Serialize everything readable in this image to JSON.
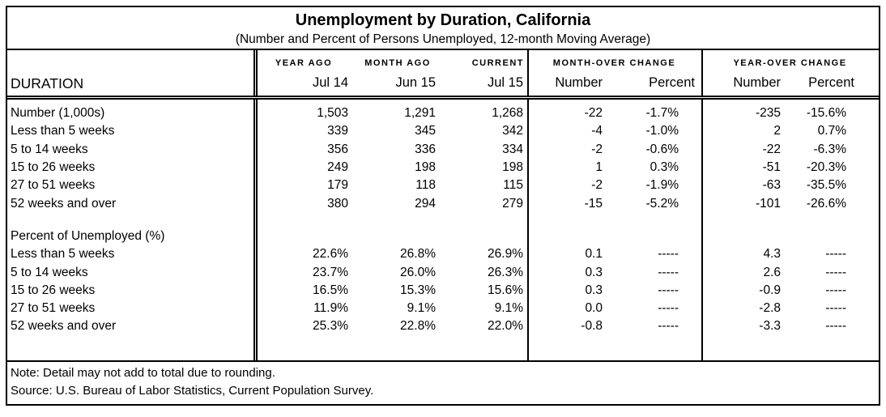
{
  "colors": {
    "border": "#000000",
    "background": "#ffffff",
    "text": "#000000"
  },
  "table": {
    "title": "Unemployment by Duration, California",
    "subtitle": "(Number and Percent of Persons Unemployed, 12-month Moving Average)",
    "duration_header": "DURATION",
    "col_groups": {
      "year_ago": "YEAR AGO",
      "month_ago": "MONTH AGO",
      "current": "CURRENT",
      "month_over": "MONTH-OVER CHANGE",
      "year_over": "YEAR-OVER CHANGE"
    },
    "sub_headers": {
      "year_ago": "Jul 14",
      "month_ago": "Jun 15",
      "current": "Jul 15",
      "mom_number": "Number",
      "mom_percent": "Percent",
      "yoy_number": "Number",
      "yoy_percent": "Percent"
    },
    "number_rows": [
      {
        "label": "Number (1,000s)",
        "year_ago": "1,503",
        "month_ago": "1,291",
        "current": "1,268",
        "mom_number": "-22",
        "mom_percent": "-1.7%",
        "yoy_number": "-235",
        "yoy_percent": "-15.6%"
      },
      {
        "label": "Less than 5 weeks",
        "year_ago": "339",
        "month_ago": "345",
        "current": "342",
        "mom_number": "-4",
        "mom_percent": "-1.0%",
        "yoy_number": "2",
        "yoy_percent": "0.7%"
      },
      {
        "label": "5 to 14 weeks",
        "year_ago": "356",
        "month_ago": "336",
        "current": "334",
        "mom_number": "-2",
        "mom_percent": "-0.6%",
        "yoy_number": "-22",
        "yoy_percent": "-6.3%"
      },
      {
        "label": "15 to 26 weeks",
        "year_ago": "249",
        "month_ago": "198",
        "current": "198",
        "mom_number": "1",
        "mom_percent": "0.3%",
        "yoy_number": "-51",
        "yoy_percent": "-20.3%"
      },
      {
        "label": "27 to 51 weeks",
        "year_ago": "179",
        "month_ago": "118",
        "current": "115",
        "mom_number": "-2",
        "mom_percent": "-1.9%",
        "yoy_number": "-63",
        "yoy_percent": "-35.5%"
      },
      {
        "label": "52 weeks and over",
        "year_ago": "380",
        "month_ago": "294",
        "current": "279",
        "mom_number": "-15",
        "mom_percent": "-5.2%",
        "yoy_number": "-101",
        "yoy_percent": "-26.6%"
      }
    ],
    "percent_section_label": "Percent of Unemployed (%)",
    "percent_rows": [
      {
        "label": "Less than 5 weeks",
        "year_ago": "22.6%",
        "month_ago": "26.8%",
        "current": "26.9%",
        "mom_number": "0.1",
        "mom_percent": "-----",
        "yoy_number": "4.3",
        "yoy_percent": "-----"
      },
      {
        "label": "5 to 14 weeks",
        "year_ago": "23.7%",
        "month_ago": "26.0%",
        "current": "26.3%",
        "mom_number": "0.3",
        "mom_percent": "-----",
        "yoy_number": "2.6",
        "yoy_percent": "-----"
      },
      {
        "label": "15 to 26 weeks",
        "year_ago": "16.5%",
        "month_ago": "15.3%",
        "current": "15.6%",
        "mom_number": "0.3",
        "mom_percent": "-----",
        "yoy_number": "-0.9",
        "yoy_percent": "-----"
      },
      {
        "label": "27 to 51 weeks",
        "year_ago": "11.9%",
        "month_ago": "9.1%",
        "current": "9.1%",
        "mom_number": "0.0",
        "mom_percent": "-----",
        "yoy_number": "-2.8",
        "yoy_percent": "-----"
      },
      {
        "label": "52 weeks and over",
        "year_ago": "25.3%",
        "month_ago": "22.8%",
        "current": "22.0%",
        "mom_number": "-0.8",
        "mom_percent": "-----",
        "yoy_number": "-3.3",
        "yoy_percent": "-----"
      }
    ],
    "note": "Note:  Detail may not add to total due to rounding.",
    "source": "Source:  U.S. Bureau of Labor Statistics, Current Population Survey."
  }
}
